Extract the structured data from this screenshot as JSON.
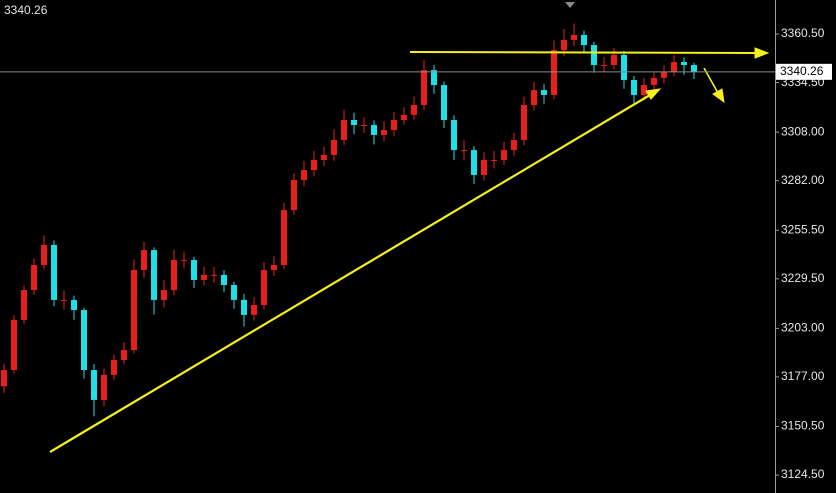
{
  "chart_data": {
    "type": "candlestick",
    "current_price": 3340.26,
    "up_color": "#e8201c",
    "down_color": "#1ee0e6",
    "ylim": [
      3114.9,
      3378.7
    ],
    "yticks": [
      {
        "value": 3360.5,
        "label": "3360.50"
      },
      {
        "value": 3334.5,
        "label": "3334.50"
      },
      {
        "value": 3308,
        "label": "3308.00"
      },
      {
        "value": 3282,
        "label": "3282.00"
      },
      {
        "value": 3255.5,
        "label": "3255.50"
      },
      {
        "value": 3229.5,
        "label": "3229.50"
      },
      {
        "value": 3203,
        "label": "3203.00"
      },
      {
        "value": 3177,
        "label": "3177.00"
      },
      {
        "value": 3150.5,
        "label": "3150.50"
      },
      {
        "value": 3124.5,
        "label": "3124.50"
      }
    ],
    "open": [
      3172.0,
      3180.7,
      3207.5,
      3223.5,
      3236.9,
      3247.6,
      3218.2,
      3218.2,
      3212.8,
      3180.7,
      3164.7,
      3178.1,
      3186.1,
      3191.4,
      3234.2,
      3244.9,
      3218.2,
      3223.5,
      3239.6,
      3239.6,
      3228.9,
      3231.6,
      3231.6,
      3226.2,
      3218.2,
      3210.2,
      3215.5,
      3234.2,
      3236.9,
      3266.3,
      3282.4,
      3287.7,
      3293.1,
      3295.8,
      3303.8,
      3314.5,
      3311.8,
      3311.8,
      3306.5,
      3309.1,
      3314.5,
      3317.2,
      3322.5,
      3341.2,
      3333.2,
      3314.5,
      3298.4,
      3298.4,
      3285.1,
      3293.1,
      3293.1,
      3298.4,
      3303.8,
      3322.5,
      3330.5,
      3327.9,
      3351.9,
      3357.3,
      3360.0,
      3354.6,
      3343.9,
      3343.9,
      3349.3,
      3335.9,
      3327.9,
      3333.2,
      3337.0,
      3340.2,
      3345.5,
      3343.9
    ],
    "high": [
      3184.0,
      3210.1,
      3226.0,
      3240.3,
      3252.8,
      3250.1,
      3223.4,
      3220.5,
      3214.0,
      3183.9,
      3181.5,
      3189.0,
      3195.6,
      3240.0,
      3249.5,
      3246.3,
      3228.8,
      3245.0,
      3244.2,
      3241.3,
      3236.0,
      3235.9,
      3234.0,
      3228.1,
      3221.4,
      3219.8,
      3238.4,
      3241.5,
      3270.2,
      3286.0,
      3292.5,
      3298.0,
      3300.2,
      3309.6,
      3320.1,
      3318.4,
      3316.0,
      3314.3,
      3313.7,
      3318.9,
      3321.4,
      3327.0,
      3346.8,
      3344.0,
      3335.1,
      3317.0,
      3303.6,
      3300.5,
      3297.2,
      3297.9,
      3302.7,
      3307.5,
      3326.9,
      3334.8,
      3333.6,
      3357.0,
      3363.2,
      3366.1,
      3362.4,
      3356.3,
      3348.2,
      3353.0,
      3351.4,
      3338.0,
      3337.1,
      3340.5,
      3343.8,
      3349.2,
      3348.0,
      3345.1
    ],
    "low": [
      3168.5,
      3178.9,
      3205.2,
      3221.0,
      3234.5,
      3214.9,
      3213.0,
      3207.6,
      3176.2,
      3156.0,
      3161.2,
      3175.3,
      3183.8,
      3189.7,
      3230.1,
      3210.4,
      3214.1,
      3220.7,
      3235.0,
      3224.5,
      3225.8,
      3227.4,
      3222.3,
      3213.5,
      3204.0,
      3207.1,
      3213.0,
      3231.0,
      3234.6,
      3263.8,
      3279.1,
      3284.3,
      3289.9,
      3292.7,
      3301.2,
      3306.9,
      3307.5,
      3301.4,
      3303.2,
      3306.0,
      3312.0,
      3314.6,
      3319.9,
      3328.5,
      3310.2,
      3293.0,
      3292.8,
      3280.3,
      3282.0,
      3288.6,
      3290.4,
      3295.3,
      3301.0,
      3319.6,
      3323.2,
      3325.5,
      3348.8,
      3354.0,
      3350.1,
      3339.8,
      3340.0,
      3341.5,
      3331.2,
      3323.4,
      3325.0,
      3330.6,
      3334.1,
      3337.9,
      3338.7,
      3336.4
    ],
    "close": [
      3180.7,
      3207.5,
      3223.5,
      3236.9,
      3247.6,
      3218.2,
      3218.2,
      3212.8,
      3180.7,
      3164.7,
      3178.1,
      3186.1,
      3191.4,
      3234.2,
      3244.9,
      3218.2,
      3223.5,
      3239.6,
      3239.6,
      3228.9,
      3231.6,
      3231.6,
      3226.2,
      3218.2,
      3210.2,
      3215.5,
      3234.2,
      3236.9,
      3266.3,
      3282.4,
      3287.7,
      3293.1,
      3295.8,
      3303.8,
      3314.5,
      3311.8,
      3311.8,
      3306.5,
      3309.1,
      3314.5,
      3317.2,
      3322.5,
      3341.2,
      3333.2,
      3314.5,
      3298.4,
      3298.4,
      3285.1,
      3293.1,
      3293.1,
      3298.4,
      3303.8,
      3322.5,
      3330.5,
      3327.9,
      3351.9,
      3357.3,
      3360.0,
      3354.6,
      3343.9,
      3343.9,
      3349.3,
      3335.9,
      3327.9,
      3333.2,
      3337.0,
      3340.2,
      3345.5,
      3343.9,
      3340.26
    ]
  }
}
